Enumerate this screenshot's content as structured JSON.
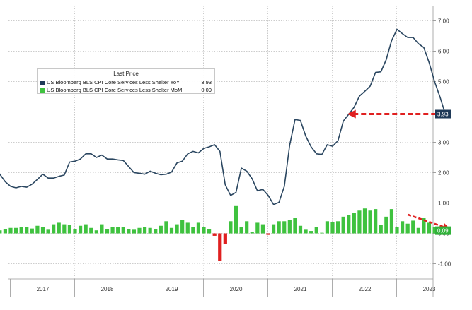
{
  "colors": {
    "yoy_line": "#2a4660",
    "mom_positive": "#3fc23f",
    "mom_negative": "#e02020",
    "arrow": "#e02020",
    "grid": "#bdbdbd",
    "axis_text": "#333333",
    "yoy_tag": "#1f3a58",
    "mom_tag": "#31b23a"
  },
  "legend": {
    "title": "Last Price",
    "items": [
      {
        "label": "US Bloomberg BLS CPI Core Services Less Shelter YoY",
        "value": "3.93",
        "color": "#1f3a58"
      },
      {
        "label": "US Bloomberg BLS CPI Core Services Less Shelter MoM",
        "value": "0.09",
        "color": "#3fc23f"
      }
    ]
  },
  "tags": {
    "yoy": "3.93",
    "mom": "0.09"
  },
  "chart_data": {
    "type": "line",
    "x_axis": {
      "labels": [
        "2017",
        "2018",
        "2019",
        "2020",
        "2021",
        "2022",
        "2023"
      ]
    },
    "y_axis": {
      "ticks": [
        -1.0,
        0.0,
        1.0,
        2.0,
        3.0,
        4.0,
        5.0,
        6.0,
        7.0
      ],
      "tick_labels": [
        "-1.00",
        "0.00",
        "1.00",
        "2.00",
        "3.00",
        "4.00",
        "5.00",
        "6.00",
        "7.00"
      ],
      "ylim": [
        -1.5,
        7.5
      ],
      "position": "right"
    },
    "grid": true,
    "x_start": "2016-09",
    "series": [
      {
        "name": "US Bloomberg BLS CPI Core Services Less Shelter YoY",
        "type": "line",
        "values": [
          2.6,
          2.25,
          1.95,
          1.7,
          1.55,
          1.5,
          1.55,
          1.52,
          1.62,
          1.78,
          1.95,
          1.82,
          1.82,
          1.88,
          1.92,
          2.35,
          2.38,
          2.45,
          2.62,
          2.62,
          2.5,
          2.58,
          2.45,
          2.45,
          2.42,
          2.4,
          2.2,
          2.0,
          1.98,
          1.95,
          2.05,
          1.98,
          1.93,
          1.95,
          2.02,
          2.32,
          2.38,
          2.62,
          2.7,
          2.65,
          2.8,
          2.85,
          2.92,
          2.7,
          1.6,
          1.25,
          1.35,
          2.15,
          2.05,
          1.8,
          1.4,
          1.45,
          1.25,
          0.95,
          1.02,
          1.55,
          2.9,
          3.75,
          3.72,
          3.2,
          2.85,
          2.62,
          2.6,
          2.92,
          2.87,
          3.05,
          3.7,
          3.92,
          4.15,
          4.52,
          4.68,
          4.85,
          5.3,
          5.32,
          5.72,
          6.35,
          6.72,
          6.58,
          6.45,
          6.45,
          6.25,
          6.12,
          5.62,
          5.0,
          4.5,
          3.93
        ]
      },
      {
        "name": "US Bloomberg BLS CPI Core Services Less Shelter MoM",
        "type": "bar",
        "values": [
          0.2,
          -0.28,
          0.1,
          0.15,
          0.18,
          0.18,
          0.2,
          0.2,
          0.16,
          0.25,
          0.22,
          0.12,
          0.3,
          0.35,
          0.3,
          0.28,
          0.15,
          0.25,
          0.3,
          0.18,
          0.1,
          0.3,
          0.15,
          0.22,
          0.2,
          0.22,
          0.15,
          0.12,
          0.18,
          0.2,
          0.18,
          0.15,
          0.25,
          0.4,
          0.18,
          0.3,
          0.45,
          0.35,
          0.2,
          0.35,
          0.2,
          0.15,
          -0.08,
          -0.9,
          -0.35,
          0.4,
          0.9,
          0.2,
          0.4,
          0.05,
          0.35,
          0.3,
          -0.05,
          0.3,
          0.4,
          0.4,
          0.45,
          0.5,
          0.25,
          0.12,
          0.08,
          0.2,
          0.02,
          0.4,
          0.38,
          0.4,
          0.55,
          0.6,
          0.68,
          0.75,
          0.82,
          0.75,
          0.8,
          0.28,
          0.55,
          0.8,
          0.2,
          0.4,
          0.32,
          0.42,
          0.18,
          0.5,
          0.35,
          0.22,
          0.2,
          0.09
        ]
      }
    ]
  }
}
